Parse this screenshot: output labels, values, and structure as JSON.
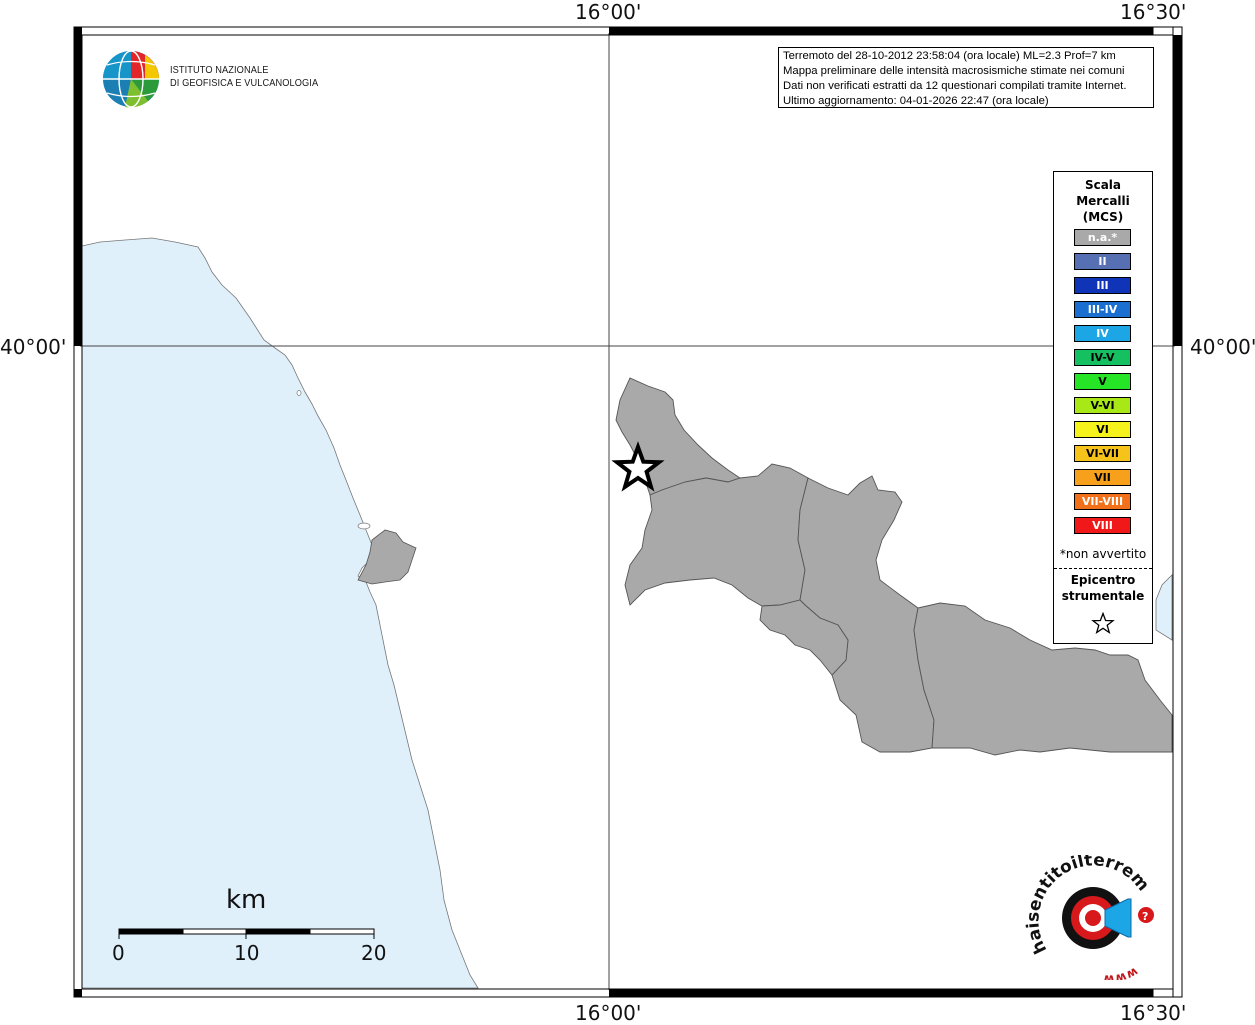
{
  "map": {
    "top_lon_labels": [
      "16°00'",
      "16°30'"
    ],
    "bottom_lon_labels": [
      "16°00'",
      "16°30'"
    ],
    "left_lat_label": "40°00'",
    "right_lat_label": "40°00'",
    "colors": {
      "sea": "#dff0fb",
      "land": "#ffffff",
      "intensity_na": "#a9a9a9",
      "frame": "#000000",
      "grid": "#444444"
    }
  },
  "logo": {
    "name_line1": "ISTITUTO NAZIONALE",
    "name_line2": "DI GEOFISICA E VULCANOLOGIA",
    "icon": "ingv-globe-logo"
  },
  "info": {
    "line1": "Terremoto del 28-10-2012 23:58:04 (ora locale) ML=2.3 Prof=7 km",
    "line2": "Mappa preliminare delle intensità macrosismiche stimate nei comuni",
    "line3": "Dati non verificati estratti da 12 questionari compilati tramite Internet.",
    "line4": "Ultimo aggiornamento: 04-01-2026 22:47 (ora locale)"
  },
  "legend": {
    "title_line1": "Scala",
    "title_line2": "Mercalli",
    "title_line3": "(MCS)",
    "items": [
      {
        "label": "n.a.*",
        "color": "#a9a9a9"
      },
      {
        "label": "II",
        "color": "#5670b3"
      },
      {
        "label": "III",
        "color": "#1034b8"
      },
      {
        "label": "III-IV",
        "color": "#1b6fd1"
      },
      {
        "label": "IV",
        "color": "#1ca6e6"
      },
      {
        "label": "IV-V",
        "color": "#14c060"
      },
      {
        "label": "V",
        "color": "#26e526"
      },
      {
        "label": "V-VI",
        "color": "#a8e817"
      },
      {
        "label": "VI",
        "color": "#f6f21b"
      },
      {
        "label": "VI-VII",
        "color": "#f6c31b"
      },
      {
        "label": "VII",
        "color": "#f6a01b"
      },
      {
        "label": "VII-VIII",
        "color": "#f2701a"
      },
      {
        "label": "VIII",
        "color": "#f01818"
      }
    ],
    "note": "*non avvertito",
    "epicenter_line1": "Epicentro",
    "epicenter_line2": "strumentale",
    "epicenter_icon": "star-icon"
  },
  "scale_bar": {
    "unit": "km",
    "ticks": [
      "0",
      "10",
      "20"
    ]
  },
  "hsit_logo": {
    "text": "haisentitoilterremoto.it",
    "prefix": "www.",
    "icon": "hsit-target-logo"
  }
}
